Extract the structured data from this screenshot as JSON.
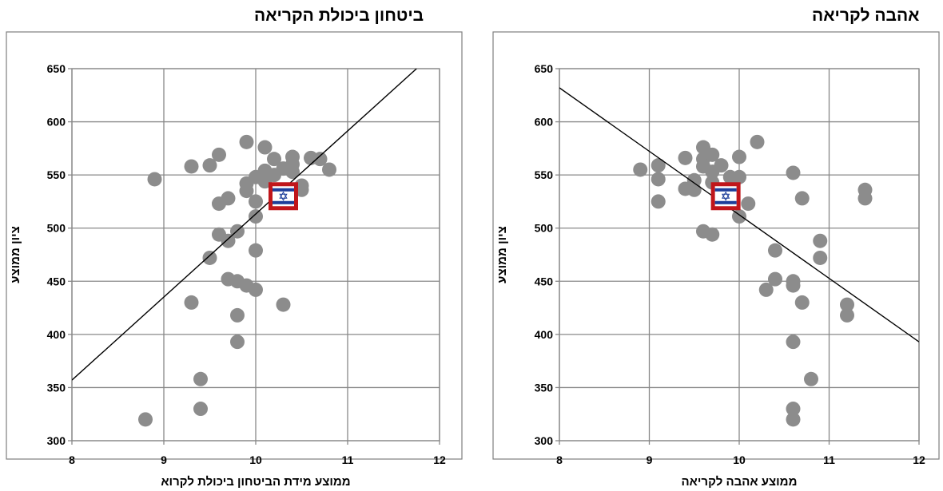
{
  "chart_data": [
    {
      "type": "scatter",
      "title": "ביטחון ביכולת הקריאה",
      "xlabel": "ממוצע מידת הביטחון ביכולת לקרוא",
      "ylabel": "ציון ממוצע",
      "xlim": [
        8,
        12
      ],
      "ylim": [
        300,
        650
      ],
      "x_ticks": [
        "8",
        "9",
        "10",
        "11",
        "12"
      ],
      "y_ticks": [
        "300",
        "350",
        "400",
        "450",
        "500",
        "550",
        "600",
        "650"
      ],
      "grid": true,
      "trendline": {
        "x": [
          8.0,
          11.75
        ],
        "y": [
          357,
          650
        ]
      },
      "highlight": {
        "label": "Israel",
        "icon": "israel-flag-icon",
        "x": 10.3,
        "y": 530,
        "border_color": "#c0161b",
        "flag_blue": "#1d3e9a"
      },
      "marker_color": "#8c8c8c",
      "points": [
        {
          "x": 8.8,
          "y": 320
        },
        {
          "x": 8.9,
          "y": 546
        },
        {
          "x": 9.3,
          "y": 558
        },
        {
          "x": 9.3,
          "y": 430
        },
        {
          "x": 9.4,
          "y": 358
        },
        {
          "x": 9.4,
          "y": 330
        },
        {
          "x": 9.5,
          "y": 559
        },
        {
          "x": 9.5,
          "y": 472
        },
        {
          "x": 9.6,
          "y": 569
        },
        {
          "x": 9.6,
          "y": 523
        },
        {
          "x": 9.6,
          "y": 494
        },
        {
          "x": 9.7,
          "y": 528
        },
        {
          "x": 9.7,
          "y": 488
        },
        {
          "x": 9.7,
          "y": 452
        },
        {
          "x": 9.8,
          "y": 497
        },
        {
          "x": 9.8,
          "y": 450
        },
        {
          "x": 9.8,
          "y": 418
        },
        {
          "x": 9.8,
          "y": 393
        },
        {
          "x": 9.9,
          "y": 581
        },
        {
          "x": 9.9,
          "y": 542
        },
        {
          "x": 9.9,
          "y": 535
        },
        {
          "x": 9.9,
          "y": 446
        },
        {
          "x": 10.0,
          "y": 548
        },
        {
          "x": 10.0,
          "y": 525
        },
        {
          "x": 10.0,
          "y": 511
        },
        {
          "x": 10.0,
          "y": 479
        },
        {
          "x": 10.0,
          "y": 442
        },
        {
          "x": 10.1,
          "y": 576
        },
        {
          "x": 10.1,
          "y": 554
        },
        {
          "x": 10.1,
          "y": 544
        },
        {
          "x": 10.2,
          "y": 565
        },
        {
          "x": 10.2,
          "y": 550
        },
        {
          "x": 10.3,
          "y": 428
        },
        {
          "x": 10.3,
          "y": 556
        },
        {
          "x": 10.4,
          "y": 567
        },
        {
          "x": 10.4,
          "y": 560
        },
        {
          "x": 10.4,
          "y": 553
        },
        {
          "x": 10.5,
          "y": 540
        },
        {
          "x": 10.5,
          "y": 536
        },
        {
          "x": 10.6,
          "y": 566
        },
        {
          "x": 10.7,
          "y": 565
        },
        {
          "x": 10.8,
          "y": 555
        }
      ]
    },
    {
      "type": "scatter",
      "title": "אהבה לקריאה",
      "xlabel": "ממוצע אהבה לקריאה",
      "ylabel": "ציון ממוצע",
      "xlim": [
        8,
        12
      ],
      "ylim": [
        300,
        650
      ],
      "x_ticks": [
        "8",
        "9",
        "10",
        "11",
        "12"
      ],
      "y_ticks": [
        "300",
        "350",
        "400",
        "450",
        "500",
        "550",
        "600",
        "650"
      ],
      "grid": true,
      "trendline": {
        "x": [
          8.0,
          12.0
        ],
        "y": [
          632,
          393
        ]
      },
      "highlight": {
        "label": "Israel",
        "icon": "israel-flag-icon",
        "x": 9.85,
        "y": 530,
        "border_color": "#c0161b",
        "flag_blue": "#1d3e9a"
      },
      "marker_color": "#8c8c8c",
      "points": [
        {
          "x": 8.9,
          "y": 555
        },
        {
          "x": 9.1,
          "y": 559
        },
        {
          "x": 9.1,
          "y": 546
        },
        {
          "x": 9.1,
          "y": 525
        },
        {
          "x": 9.4,
          "y": 566
        },
        {
          "x": 9.4,
          "y": 537
        },
        {
          "x": 9.5,
          "y": 545
        },
        {
          "x": 9.5,
          "y": 536
        },
        {
          "x": 9.6,
          "y": 576
        },
        {
          "x": 9.6,
          "y": 565
        },
        {
          "x": 9.6,
          "y": 558
        },
        {
          "x": 9.6,
          "y": 497
        },
        {
          "x": 9.7,
          "y": 569
        },
        {
          "x": 9.7,
          "y": 553
        },
        {
          "x": 9.7,
          "y": 543
        },
        {
          "x": 9.7,
          "y": 494
        },
        {
          "x": 9.8,
          "y": 559
        },
        {
          "x": 9.9,
          "y": 548
        },
        {
          "x": 10.0,
          "y": 567
        },
        {
          "x": 10.0,
          "y": 548
        },
        {
          "x": 10.0,
          "y": 511
        },
        {
          "x": 10.1,
          "y": 523
        },
        {
          "x": 10.2,
          "y": 581
        },
        {
          "x": 10.3,
          "y": 442
        },
        {
          "x": 10.4,
          "y": 479
        },
        {
          "x": 10.4,
          "y": 452
        },
        {
          "x": 10.6,
          "y": 552
        },
        {
          "x": 10.6,
          "y": 450
        },
        {
          "x": 10.6,
          "y": 446
        },
        {
          "x": 10.6,
          "y": 393
        },
        {
          "x": 10.6,
          "y": 330
        },
        {
          "x": 10.6,
          "y": 320
        },
        {
          "x": 10.7,
          "y": 528
        },
        {
          "x": 10.7,
          "y": 430
        },
        {
          "x": 10.8,
          "y": 358
        },
        {
          "x": 10.9,
          "y": 488
        },
        {
          "x": 10.9,
          "y": 472
        },
        {
          "x": 11.2,
          "y": 428
        },
        {
          "x": 11.2,
          "y": 418
        },
        {
          "x": 11.4,
          "y": 536
        },
        {
          "x": 11.4,
          "y": 528
        }
      ]
    }
  ]
}
